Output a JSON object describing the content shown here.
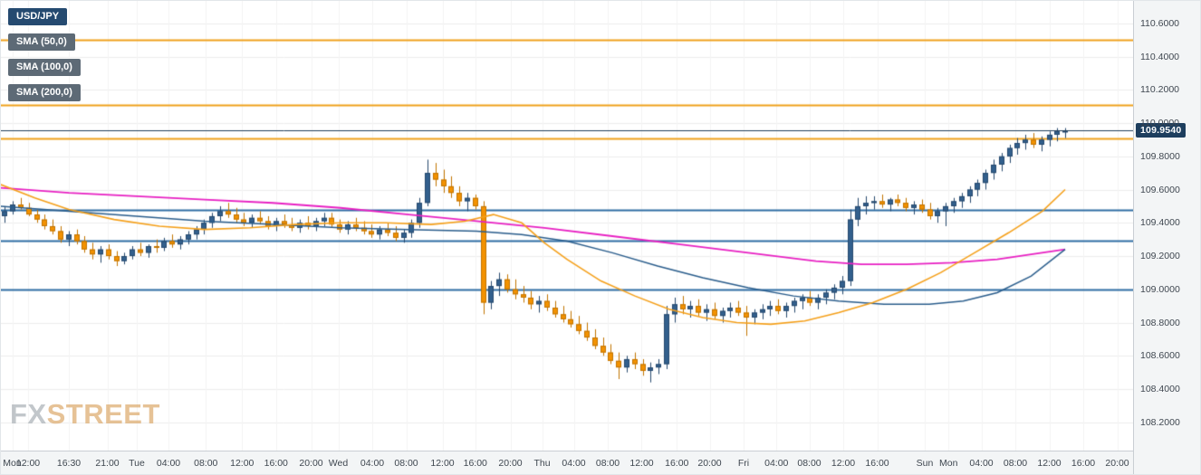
{
  "legend": {
    "symbol": "USD/JPY",
    "sma50_label": "SMA (50,0)",
    "sma100_label": "SMA (100,0)",
    "sma200_label": "SMA (200,0)"
  },
  "price_badge": "109.9540",
  "watermark": {
    "fx": "FX",
    "street": "STREET"
  },
  "colors": {
    "up": "#33608d",
    "up_border": "#26496e",
    "down": "#f39200",
    "down_border": "#c27400",
    "sma50": "#f5a01a",
    "sma100": "#2a5d8c",
    "sma200": "#e821c3",
    "level_orange": "#f0a11c",
    "level_blue": "#2e6da4",
    "price_line": "#22405c",
    "badge_bg": "#1d3e5e",
    "grid": "#ededed",
    "vgrid": "#f4f4f4"
  },
  "chart_data": {
    "type": "candlestick",
    "symbol": "USD/JPY",
    "current_price": 109.954,
    "ohlc_format": [
      "open",
      "high",
      "low",
      "close"
    ],
    "y_axis": {
      "min": 108.03,
      "max": 110.735,
      "tick_step": 0.2,
      "ticks": [
        "110.6000",
        "110.4000",
        "110.2000",
        "110.0000",
        "109.8000",
        "109.6000",
        "109.4000",
        "109.2000",
        "109.0000",
        "108.8000",
        "108.6000",
        "108.4000",
        "108.2000"
      ]
    },
    "x_axis": {
      "labels": [
        {
          "text": "Mon",
          "pos": 0.01
        },
        {
          "text": "12:00",
          "pos": 0.024
        },
        {
          "text": "16:30",
          "pos": 0.06
        },
        {
          "text": "21:00",
          "pos": 0.094
        },
        {
          "text": "Tue",
          "pos": 0.12
        },
        {
          "text": "04:00",
          "pos": 0.148
        },
        {
          "text": "08:00",
          "pos": 0.181
        },
        {
          "text": "12:00",
          "pos": 0.213
        },
        {
          "text": "16:00",
          "pos": 0.243
        },
        {
          "text": "20:00",
          "pos": 0.274
        },
        {
          "text": "Wed",
          "pos": 0.298
        },
        {
          "text": "04:00",
          "pos": 0.328
        },
        {
          "text": "08:00",
          "pos": 0.358
        },
        {
          "text": "12:00",
          "pos": 0.39
        },
        {
          "text": "16:00",
          "pos": 0.419
        },
        {
          "text": "20:00",
          "pos": 0.45
        },
        {
          "text": "Thu",
          "pos": 0.478
        },
        {
          "text": "04:00",
          "pos": 0.506
        },
        {
          "text": "08:00",
          "pos": 0.536
        },
        {
          "text": "12:00",
          "pos": 0.566
        },
        {
          "text": "16:00",
          "pos": 0.597
        },
        {
          "text": "20:00",
          "pos": 0.626
        },
        {
          "text": "Fri",
          "pos": 0.656
        },
        {
          "text": "04:00",
          "pos": 0.685
        },
        {
          "text": "08:00",
          "pos": 0.714
        },
        {
          "text": "12:00",
          "pos": 0.744
        },
        {
          "text": "16:00",
          "pos": 0.774
        },
        {
          "text": "Sun",
          "pos": 0.816
        },
        {
          "text": "Mon",
          "pos": 0.837
        },
        {
          "text": "04:00",
          "pos": 0.866
        },
        {
          "text": "08:00",
          "pos": 0.896
        },
        {
          "text": "12:00",
          "pos": 0.926
        },
        {
          "text": "16:00",
          "pos": 0.956
        },
        {
          "text": "20:00",
          "pos": 0.986
        }
      ],
      "day_boundaries": [
        0.12,
        0.298,
        0.478,
        0.656,
        0.816,
        0.837
      ]
    },
    "levels": [
      {
        "price": 110.5,
        "color": "orange",
        "width": 2
      },
      {
        "price": 110.11,
        "color": "orange",
        "width": 2
      },
      {
        "price": 109.91,
        "color": "orange",
        "width": 2
      },
      {
        "price": 109.48,
        "color": "blue",
        "width": 2
      },
      {
        "price": 109.29,
        "color": "blue",
        "width": 2
      },
      {
        "price": 109.0,
        "color": "blue",
        "width": 2
      }
    ],
    "sma": {
      "sma50": [
        [
          0,
          109.63
        ],
        [
          0.03,
          109.55
        ],
        [
          0.06,
          109.48
        ],
        [
          0.1,
          109.42
        ],
        [
          0.14,
          109.38
        ],
        [
          0.18,
          109.36
        ],
        [
          0.22,
          109.37
        ],
        [
          0.26,
          109.39
        ],
        [
          0.3,
          109.4
        ],
        [
          0.34,
          109.4
        ],
        [
          0.38,
          109.39
        ],
        [
          0.41,
          109.41
        ],
        [
          0.435,
          109.45
        ],
        [
          0.46,
          109.4
        ],
        [
          0.48,
          109.28
        ],
        [
          0.5,
          109.18
        ],
        [
          0.53,
          109.05
        ],
        [
          0.56,
          108.96
        ],
        [
          0.59,
          108.88
        ],
        [
          0.62,
          108.83
        ],
        [
          0.65,
          108.8
        ],
        [
          0.68,
          108.79
        ],
        [
          0.71,
          108.81
        ],
        [
          0.74,
          108.86
        ],
        [
          0.77,
          108.92
        ],
        [
          0.8,
          109.0
        ],
        [
          0.83,
          109.1
        ],
        [
          0.86,
          109.22
        ],
        [
          0.89,
          109.34
        ],
        [
          0.92,
          109.47
        ],
        [
          0.94,
          109.6
        ]
      ],
      "sma100": [
        [
          0,
          109.5
        ],
        [
          0.06,
          109.47
        ],
        [
          0.12,
          109.44
        ],
        [
          0.18,
          109.41
        ],
        [
          0.24,
          109.39
        ],
        [
          0.3,
          109.37
        ],
        [
          0.36,
          109.36
        ],
        [
          0.42,
          109.35
        ],
        [
          0.46,
          109.33
        ],
        [
          0.5,
          109.29
        ],
        [
          0.54,
          109.22
        ],
        [
          0.58,
          109.14
        ],
        [
          0.62,
          109.07
        ],
        [
          0.66,
          109.01
        ],
        [
          0.7,
          108.96
        ],
        [
          0.74,
          108.93
        ],
        [
          0.78,
          108.91
        ],
        [
          0.82,
          108.91
        ],
        [
          0.85,
          108.93
        ],
        [
          0.88,
          108.98
        ],
        [
          0.91,
          109.08
        ],
        [
          0.94,
          109.24
        ]
      ],
      "sma200": [
        [
          0,
          109.61
        ],
        [
          0.06,
          109.58
        ],
        [
          0.12,
          109.56
        ],
        [
          0.18,
          109.54
        ],
        [
          0.24,
          109.52
        ],
        [
          0.3,
          109.49
        ],
        [
          0.36,
          109.45
        ],
        [
          0.42,
          109.41
        ],
        [
          0.48,
          109.37
        ],
        [
          0.54,
          109.32
        ],
        [
          0.6,
          109.27
        ],
        [
          0.66,
          109.22
        ],
        [
          0.72,
          109.17
        ],
        [
          0.76,
          109.15
        ],
        [
          0.8,
          109.15
        ],
        [
          0.84,
          109.16
        ],
        [
          0.88,
          109.18
        ],
        [
          0.91,
          109.21
        ],
        [
          0.94,
          109.24
        ]
      ]
    },
    "candles": [
      [
        109.44,
        109.5,
        109.4,
        109.47
      ],
      [
        109.47,
        109.53,
        109.45,
        109.51
      ],
      [
        109.51,
        109.55,
        109.48,
        109.49
      ],
      [
        109.49,
        109.52,
        109.44,
        109.45
      ],
      [
        109.45,
        109.48,
        109.4,
        109.42
      ],
      [
        109.42,
        109.45,
        109.36,
        109.38
      ],
      [
        109.38,
        109.42,
        109.33,
        109.35
      ],
      [
        109.35,
        109.38,
        109.28,
        109.3
      ],
      [
        109.3,
        109.35,
        109.26,
        109.33
      ],
      [
        109.33,
        109.36,
        109.27,
        109.29
      ],
      [
        109.29,
        109.32,
        109.22,
        109.24
      ],
      [
        109.24,
        109.28,
        109.18,
        109.21
      ],
      [
        109.21,
        109.26,
        109.16,
        109.24
      ],
      [
        109.24,
        109.27,
        109.18,
        109.2
      ],
      [
        109.2,
        109.23,
        109.14,
        109.17
      ],
      [
        109.17,
        109.22,
        109.15,
        109.2
      ],
      [
        109.2,
        109.26,
        109.18,
        109.24
      ],
      [
        109.24,
        109.28,
        109.2,
        109.22
      ],
      [
        109.22,
        109.27,
        109.19,
        109.26
      ],
      [
        109.26,
        109.3,
        109.22,
        109.25
      ],
      [
        109.25,
        109.31,
        109.23,
        109.29
      ],
      [
        109.29,
        109.33,
        109.25,
        109.27
      ],
      [
        109.27,
        109.32,
        109.24,
        109.3
      ],
      [
        109.3,
        109.35,
        109.27,
        109.33
      ],
      [
        109.33,
        109.38,
        109.3,
        109.36
      ],
      [
        109.36,
        109.42,
        109.33,
        109.4
      ],
      [
        109.4,
        109.46,
        109.37,
        109.44
      ],
      [
        109.44,
        109.5,
        109.41,
        109.47
      ],
      [
        109.47,
        109.52,
        109.43,
        109.45
      ],
      [
        109.45,
        109.49,
        109.4,
        109.42
      ],
      [
        109.42,
        109.46,
        109.38,
        109.4
      ],
      [
        109.4,
        109.45,
        109.37,
        109.43
      ],
      [
        109.43,
        109.47,
        109.39,
        109.41
      ],
      [
        109.41,
        109.44,
        109.36,
        109.38
      ],
      [
        109.38,
        109.43,
        109.35,
        109.41
      ],
      [
        109.41,
        109.45,
        109.37,
        109.39
      ],
      [
        109.39,
        109.43,
        109.35,
        109.37
      ],
      [
        109.37,
        109.42,
        109.34,
        109.4
      ],
      [
        109.4,
        109.44,
        109.36,
        109.38
      ],
      [
        109.38,
        109.43,
        109.35,
        109.41
      ],
      [
        109.41,
        109.46,
        109.38,
        109.43
      ],
      [
        109.43,
        109.46,
        109.37,
        109.39
      ],
      [
        109.39,
        109.42,
        109.34,
        109.36
      ],
      [
        109.36,
        109.41,
        109.33,
        109.39
      ],
      [
        109.39,
        109.43,
        109.35,
        109.37
      ],
      [
        109.37,
        109.41,
        109.33,
        109.35
      ],
      [
        109.35,
        109.39,
        109.31,
        109.33
      ],
      [
        109.33,
        109.38,
        109.3,
        109.36
      ],
      [
        109.36,
        109.4,
        109.32,
        109.34
      ],
      [
        109.34,
        109.38,
        109.29,
        109.31
      ],
      [
        109.31,
        109.36,
        109.28,
        109.34
      ],
      [
        109.34,
        109.42,
        109.31,
        109.4
      ],
      [
        109.4,
        109.55,
        109.37,
        109.52
      ],
      [
        109.52,
        109.78,
        109.5,
        109.7
      ],
      [
        109.7,
        109.76,
        109.62,
        109.66
      ],
      [
        109.66,
        109.72,
        109.58,
        109.62
      ],
      [
        109.62,
        109.68,
        109.55,
        109.58
      ],
      [
        109.58,
        109.62,
        109.5,
        109.53
      ],
      [
        109.53,
        109.58,
        109.47,
        109.55
      ],
      [
        109.55,
        109.57,
        109.48,
        109.5
      ],
      [
        109.5,
        109.53,
        108.85,
        108.92
      ],
      [
        108.92,
        109.05,
        108.88,
        109.02
      ],
      [
        109.02,
        109.1,
        108.96,
        109.06
      ],
      [
        109.06,
        109.09,
        108.98,
        109.0
      ],
      [
        109.0,
        109.06,
        108.94,
        108.97
      ],
      [
        108.97,
        109.02,
        108.92,
        108.95
      ],
      [
        108.95,
        108.99,
        108.88,
        108.91
      ],
      [
        108.91,
        108.96,
        108.86,
        108.93
      ],
      [
        108.93,
        108.97,
        108.87,
        108.89
      ],
      [
        108.89,
        108.93,
        108.83,
        108.85
      ],
      [
        108.85,
        108.9,
        108.8,
        108.82
      ],
      [
        108.82,
        108.87,
        108.77,
        108.79
      ],
      [
        108.79,
        108.84,
        108.73,
        108.75
      ],
      [
        108.75,
        108.8,
        108.69,
        108.71
      ],
      [
        108.71,
        108.76,
        108.64,
        108.66
      ],
      [
        108.66,
        108.71,
        108.6,
        108.62
      ],
      [
        108.62,
        108.67,
        108.55,
        108.57
      ],
      [
        108.57,
        108.62,
        108.46,
        108.53
      ],
      [
        108.53,
        108.6,
        108.5,
        108.58
      ],
      [
        108.58,
        108.62,
        108.52,
        108.55
      ],
      [
        108.55,
        108.58,
        108.48,
        108.51
      ],
      [
        108.51,
        108.56,
        108.44,
        108.53
      ],
      [
        108.53,
        108.58,
        108.49,
        108.55
      ],
      [
        108.55,
        108.9,
        108.52,
        108.85
      ],
      [
        108.85,
        108.95,
        108.8,
        108.91
      ],
      [
        108.91,
        108.96,
        108.85,
        108.88
      ],
      [
        108.88,
        108.93,
        108.83,
        108.9
      ],
      [
        108.9,
        108.94,
        108.84,
        108.86
      ],
      [
        108.86,
        108.91,
        108.81,
        108.88
      ],
      [
        108.88,
        108.92,
        108.82,
        108.84
      ],
      [
        108.84,
        108.89,
        108.8,
        108.87
      ],
      [
        108.87,
        108.92,
        108.83,
        108.89
      ],
      [
        108.89,
        108.93,
        108.84,
        108.86
      ],
      [
        108.86,
        108.9,
        108.72,
        108.83
      ],
      [
        108.83,
        108.88,
        108.79,
        108.86
      ],
      [
        108.86,
        108.91,
        108.82,
        108.88
      ],
      [
        108.88,
        108.93,
        108.84,
        108.9
      ],
      [
        108.9,
        108.94,
        108.85,
        108.87
      ],
      [
        108.87,
        108.92,
        108.83,
        108.9
      ],
      [
        108.9,
        108.95,
        108.86,
        108.93
      ],
      [
        108.93,
        108.97,
        108.88,
        108.95
      ],
      [
        108.95,
        108.99,
        108.9,
        108.92
      ],
      [
        108.92,
        108.97,
        108.88,
        108.95
      ],
      [
        108.95,
        109.0,
        108.91,
        108.98
      ],
      [
        108.98,
        109.03,
        108.94,
        109.01
      ],
      [
        109.01,
        109.08,
        108.97,
        109.05
      ],
      [
        109.05,
        109.48,
        109.02,
        109.42
      ],
      [
        109.42,
        109.55,
        109.38,
        109.5
      ],
      [
        109.5,
        109.56,
        109.45,
        109.52
      ],
      [
        109.52,
        109.56,
        109.48,
        109.53
      ],
      [
        109.53,
        109.57,
        109.49,
        109.51
      ],
      [
        109.51,
        109.55,
        109.47,
        109.54
      ],
      [
        109.54,
        109.57,
        109.5,
        109.52
      ],
      [
        109.52,
        109.55,
        109.47,
        109.49
      ],
      [
        109.49,
        109.53,
        109.45,
        109.51
      ],
      [
        109.51,
        109.54,
        109.46,
        109.48
      ],
      [
        109.48,
        109.52,
        109.42,
        109.44
      ],
      [
        109.44,
        109.49,
        109.4,
        109.47
      ],
      [
        109.47,
        109.52,
        109.38,
        109.5
      ],
      [
        109.5,
        109.55,
        109.46,
        109.53
      ],
      [
        109.53,
        109.58,
        109.49,
        109.56
      ],
      [
        109.56,
        109.62,
        109.52,
        109.6
      ],
      [
        109.6,
        109.66,
        109.56,
        109.64
      ],
      [
        109.64,
        109.72,
        109.6,
        109.7
      ],
      [
        109.7,
        109.78,
        109.66,
        109.75
      ],
      [
        109.75,
        109.82,
        109.71,
        109.8
      ],
      [
        109.8,
        109.87,
        109.76,
        109.85
      ],
      [
        109.85,
        109.91,
        109.81,
        109.88
      ],
      [
        109.88,
        109.93,
        109.84,
        109.9
      ],
      [
        109.9,
        109.94,
        109.85,
        109.87
      ],
      [
        109.87,
        109.92,
        109.83,
        109.9
      ],
      [
        109.9,
        109.95,
        109.86,
        109.93
      ],
      [
        109.93,
        109.97,
        109.89,
        109.95
      ],
      [
        109.95,
        109.97,
        109.91,
        109.954
      ]
    ]
  }
}
